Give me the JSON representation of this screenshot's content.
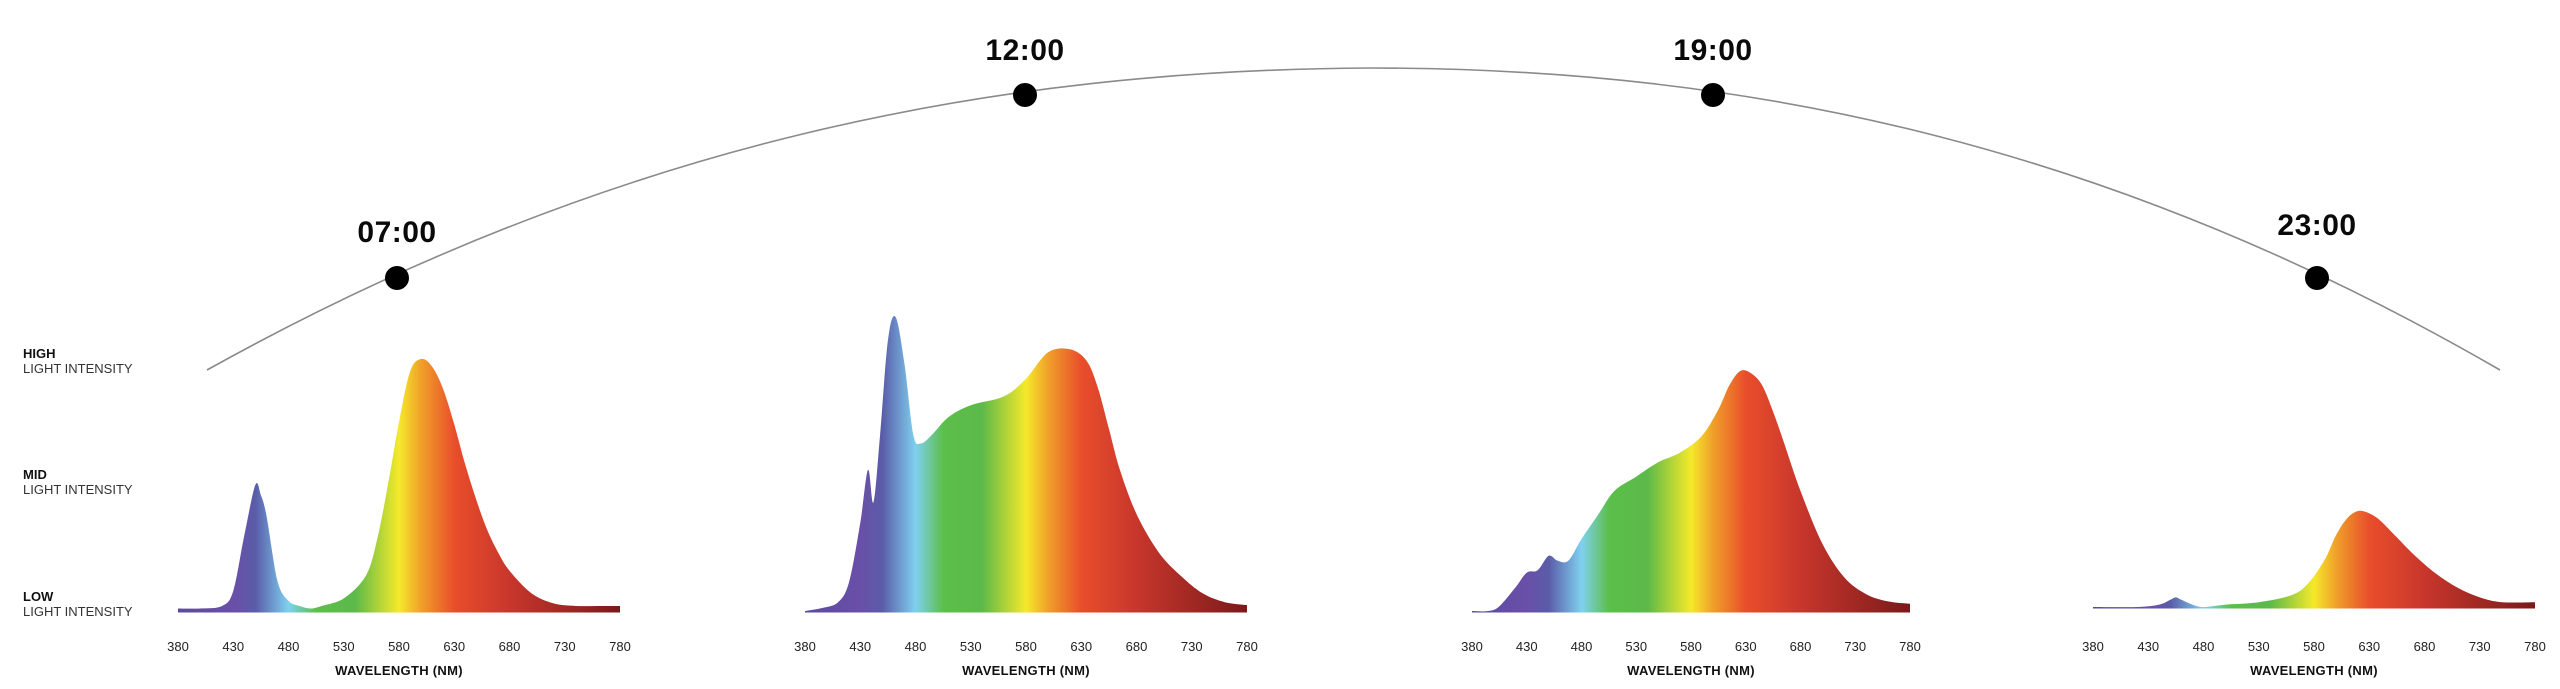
{
  "intensity_labels": [
    {
      "level": "HIGH",
      "sub": "LIGHT INTENSITY"
    },
    {
      "level": "MID",
      "sub": "LIGHT INTENSITY"
    },
    {
      "level": "LOW",
      "sub": "LIGHT INTENSITY"
    }
  ],
  "timeline": {
    "times": [
      "07:00",
      "12:00",
      "19:00",
      "23:00"
    ]
  },
  "colors": {
    "arc": "#8a8a8a",
    "dot": "#000000",
    "spectrum_stops": [
      "#5b4aa0",
      "#6a4fa8",
      "#5a5ca8",
      "#7fd0f0",
      "#5cbf4a",
      "#5cb94a",
      "#f5e92a",
      "#f0a02a",
      "#e94e2b",
      "#c8362c",
      "#7a1a1a"
    ]
  },
  "chart_data": [
    {
      "type": "area",
      "title": "07:00",
      "xlabel": "WAVELENGTH (NM)",
      "ylabel": "LIGHT INTENSITY",
      "x_ticks": [
        380,
        430,
        480,
        530,
        580,
        630,
        680,
        730,
        780
      ],
      "xlim": [
        380,
        780
      ],
      "y_levels": [
        "LOW",
        "MID",
        "HIGH"
      ],
      "x": [
        380,
        400,
        420,
        430,
        440,
        450,
        455,
        460,
        470,
        480,
        490,
        500,
        510,
        530,
        550,
        560,
        570,
        580,
        590,
        600,
        610,
        620,
        630,
        640,
        650,
        660,
        670,
        680,
        700,
        720,
        740,
        760,
        780
      ],
      "values": [
        0.01,
        0.01,
        0.02,
        0.08,
        0.3,
        0.5,
        0.46,
        0.38,
        0.12,
        0.04,
        0.02,
        0.01,
        0.02,
        0.05,
        0.14,
        0.28,
        0.5,
        0.75,
        0.95,
        1.0,
        0.97,
        0.88,
        0.74,
        0.58,
        0.44,
        0.32,
        0.23,
        0.16,
        0.07,
        0.03,
        0.02,
        0.02,
        0.02
      ]
    },
    {
      "type": "area",
      "title": "12:00",
      "xlabel": "WAVELENGTH (NM)",
      "ylabel": "LIGHT INTENSITY",
      "x_ticks": [
        380,
        430,
        480,
        530,
        580,
        630,
        680,
        730,
        780
      ],
      "xlim": [
        380,
        780
      ],
      "y_levels": [
        "LOW",
        "MID",
        "HIGH"
      ],
      "x": [
        380,
        395,
        410,
        420,
        430,
        437,
        442,
        448,
        455,
        462,
        470,
        478,
        485,
        495,
        510,
        530,
        560,
        580,
        600,
        620,
        635,
        645,
        655,
        665,
        680,
        700,
        720,
        740,
        760,
        780
      ],
      "values": [
        0.0,
        0.01,
        0.03,
        0.1,
        0.3,
        0.48,
        0.37,
        0.6,
        0.92,
        1.0,
        0.84,
        0.6,
        0.57,
        0.6,
        0.66,
        0.7,
        0.73,
        0.79,
        0.88,
        0.89,
        0.85,
        0.76,
        0.62,
        0.48,
        0.33,
        0.2,
        0.12,
        0.06,
        0.03,
        0.02
      ]
    },
    {
      "type": "area",
      "title": "19:00",
      "xlabel": "WAVELENGTH (NM)",
      "ylabel": "LIGHT INTENSITY",
      "x_ticks": [
        380,
        430,
        480,
        530,
        580,
        630,
        680,
        730,
        780
      ],
      "xlim": [
        380,
        780
      ],
      "y_levels": [
        "LOW",
        "MID",
        "HIGH"
      ],
      "x": [
        380,
        395,
        405,
        420,
        430,
        440,
        450,
        458,
        468,
        480,
        495,
        510,
        530,
        550,
        570,
        590,
        605,
        615,
        625,
        635,
        645,
        655,
        665,
        680,
        700,
        720,
        740,
        760,
        780
      ],
      "values": [
        0.0,
        0.0,
        0.02,
        0.1,
        0.16,
        0.17,
        0.23,
        0.21,
        0.21,
        0.3,
        0.4,
        0.5,
        0.56,
        0.62,
        0.66,
        0.73,
        0.84,
        0.94,
        1.0,
        0.99,
        0.94,
        0.83,
        0.7,
        0.5,
        0.28,
        0.14,
        0.07,
        0.04,
        0.03
      ]
    },
    {
      "type": "area",
      "title": "23:00",
      "xlabel": "WAVELENGTH (NM)",
      "ylabel": "LIGHT INTENSITY",
      "x_ticks": [
        380,
        430,
        480,
        530,
        580,
        630,
        680,
        730,
        780
      ],
      "xlim": [
        380,
        780
      ],
      "y_levels": [
        "LOW",
        "MID",
        "HIGH"
      ],
      "x": [
        380,
        420,
        440,
        450,
        455,
        460,
        470,
        480,
        500,
        530,
        560,
        575,
        590,
        600,
        610,
        620,
        630,
        640,
        655,
        670,
        690,
        710,
        730,
        750,
        780
      ],
      "values": [
        0.0,
        0.0,
        0.01,
        0.03,
        0.04,
        0.03,
        0.01,
        0.0,
        0.01,
        0.02,
        0.05,
        0.1,
        0.2,
        0.3,
        0.37,
        0.4,
        0.39,
        0.36,
        0.29,
        0.22,
        0.14,
        0.08,
        0.04,
        0.02,
        0.02
      ]
    }
  ]
}
